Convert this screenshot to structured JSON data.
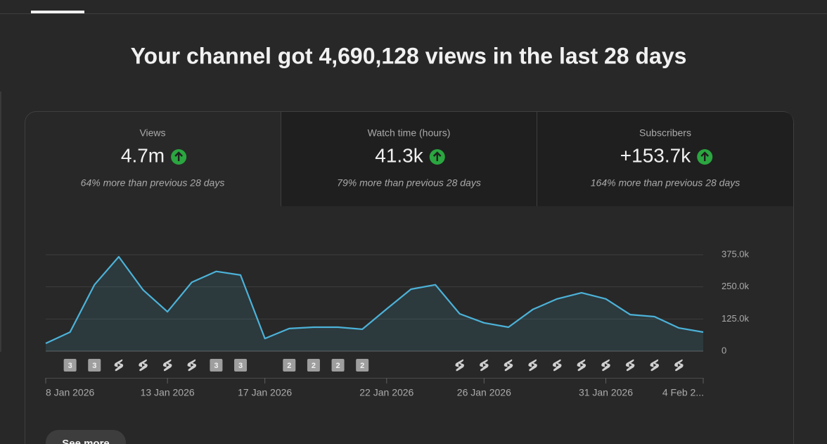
{
  "header": {
    "title": "Your channel got 4,690,128 views in the last 28 days"
  },
  "tabs": [
    {
      "label": "Views",
      "value": "4.7m",
      "change": "64% more than previous 28 days"
    },
    {
      "label": "Watch time (hours)",
      "value": "41.3k",
      "change": "79% more than previous 28 days"
    },
    {
      "label": "Subscribers",
      "value": "+153.7k",
      "change": "164% more than previous 28 days"
    }
  ],
  "chart_data": {
    "type": "area",
    "categories": [
      "8 Jan 2026",
      null,
      null,
      null,
      null,
      "13 Jan 2026",
      null,
      null,
      null,
      "17 Jan 2026",
      null,
      null,
      null,
      null,
      "22 Jan 2026",
      null,
      null,
      null,
      "26 Jan 2026",
      null,
      null,
      null,
      null,
      "31 Jan 2026",
      null,
      null,
      null,
      "4 Feb 2..."
    ],
    "values": [
      30000,
      74000,
      258000,
      367000,
      238000,
      153000,
      268000,
      310000,
      296000,
      49000,
      88000,
      93000,
      93000,
      85000,
      164000,
      241000,
      258000,
      145000,
      110000,
      93000,
      162000,
      203000,
      227000,
      203000,
      142000,
      134000,
      90000,
      74000
    ],
    "color": "#4cb2d8",
    "ylim": [
      0,
      375000
    ],
    "yticks": [
      0,
      {
        "value": 125000,
        "label": "125.0k"
      },
      {
        "value": 250000,
        "label": "250.0k"
      },
      {
        "value": 375000,
        "label": "375.0k"
      }
    ],
    "grid": true,
    "markers": [
      null,
      "3",
      "3",
      true,
      true,
      true,
      true,
      "3",
      "3",
      null,
      "2",
      "2",
      "2",
      "2",
      null,
      null,
      null,
      true,
      true,
      true,
      true,
      true,
      true,
      true,
      true,
      true,
      true,
      null
    ]
  },
  "button": {
    "label": "See more"
  }
}
